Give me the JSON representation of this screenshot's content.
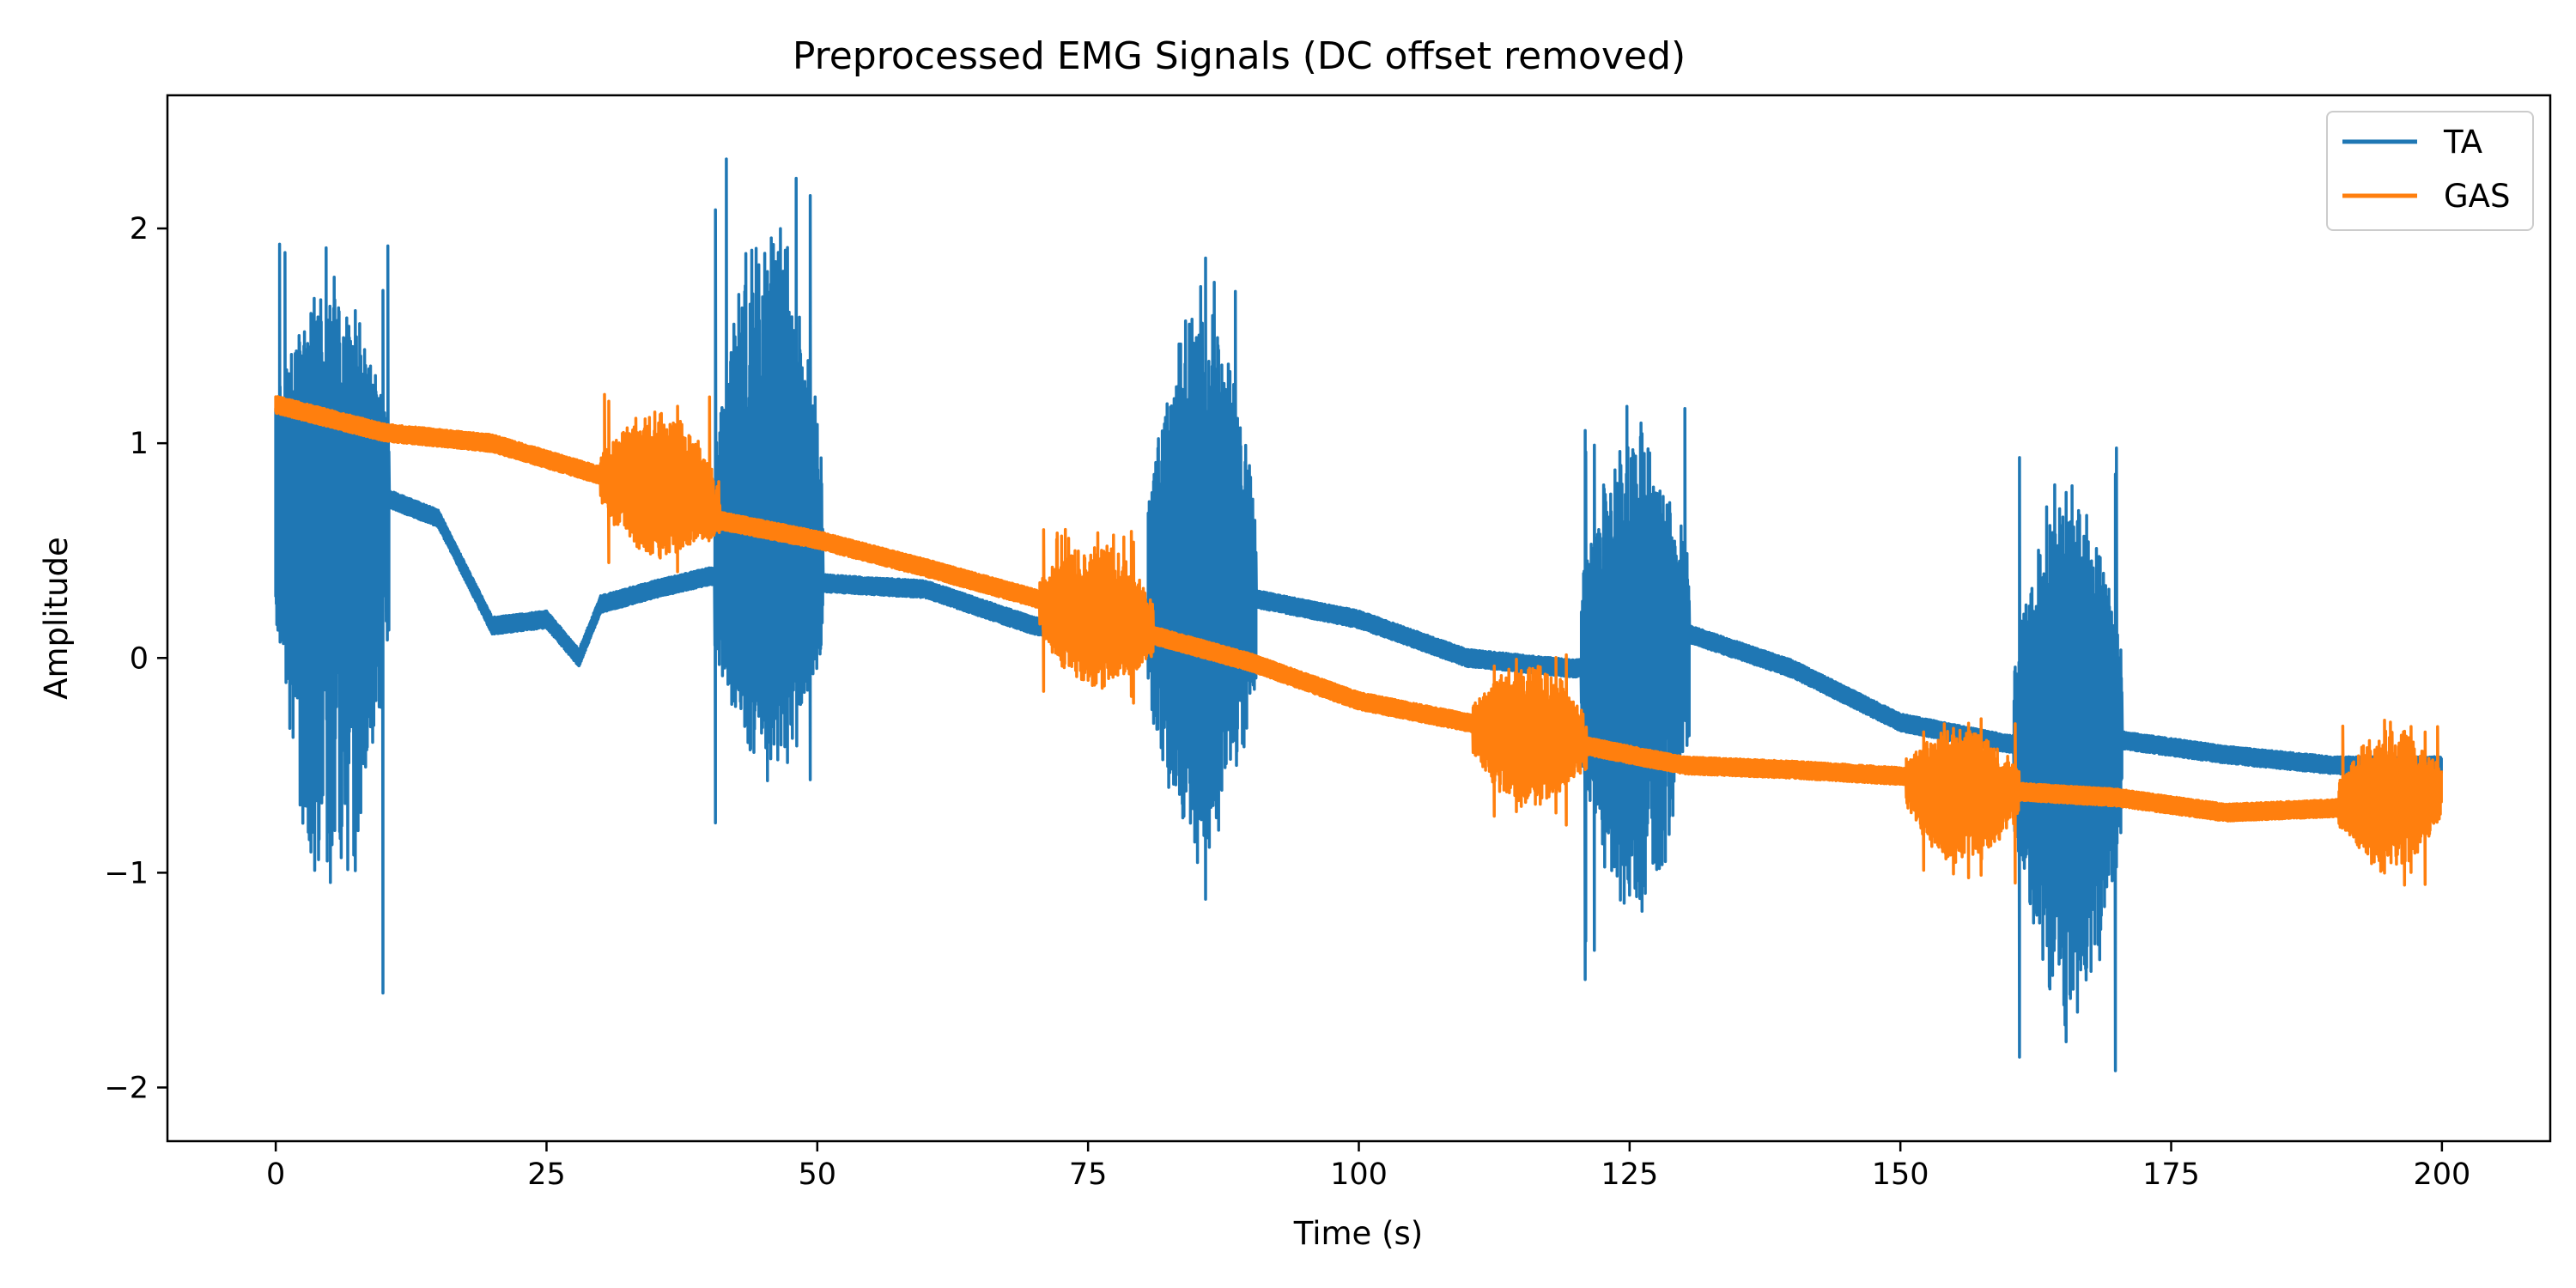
{
  "chart_data": {
    "type": "line",
    "title": "Preprocessed EMG Signals (DC offset removed)",
    "xlabel": "Time (s)",
    "ylabel": "Amplitude",
    "xlim": [
      -10,
      210
    ],
    "ylim": [
      -2.25,
      2.62
    ],
    "xticks": [
      0,
      25,
      50,
      75,
      100,
      125,
      150,
      175,
      200
    ],
    "yticks": [
      -2,
      -1,
      0,
      1,
      2
    ],
    "x_tick_labels": [
      "0",
      "25",
      "50",
      "75",
      "100",
      "125",
      "150",
      "175",
      "200"
    ],
    "y_tick_labels": [
      "−2",
      "−1",
      "0",
      "1",
      "2"
    ],
    "legend_position": "top-right",
    "grid": false,
    "series": [
      {
        "name": "TA",
        "color": "#1f77b4",
        "baseline_points": [
          [
            0,
            0.9
          ],
          [
            10,
            0.75
          ],
          [
            15,
            0.65
          ],
          [
            20,
            0.15
          ],
          [
            25,
            0.18
          ],
          [
            28,
            0.0
          ],
          [
            30,
            0.25
          ],
          [
            35,
            0.32
          ],
          [
            40,
            0.38
          ],
          [
            50,
            0.35
          ],
          [
            60,
            0.32
          ],
          [
            70,
            0.15
          ],
          [
            75,
            0.12
          ],
          [
            85,
            0.3
          ],
          [
            90,
            0.28
          ],
          [
            100,
            0.18
          ],
          [
            110,
            0.0
          ],
          [
            120,
            -0.05
          ],
          [
            130,
            0.12
          ],
          [
            140,
            -0.05
          ],
          [
            150,
            -0.3
          ],
          [
            160,
            -0.4
          ],
          [
            170,
            -0.38
          ],
          [
            180,
            -0.45
          ],
          [
            190,
            -0.5
          ],
          [
            200,
            -0.5
          ]
        ],
        "bursts": [
          {
            "start": 0,
            "end": 10.5,
            "max": 1.93,
            "min": -1.65
          },
          {
            "start": 40.5,
            "end": 50.5,
            "max": 2.4,
            "min": -0.8
          },
          {
            "start": 80.5,
            "end": 90.5,
            "max": 1.9,
            "min": -1.23
          },
          {
            "start": 120.5,
            "end": 130.5,
            "max": 1.23,
            "min": -1.55
          },
          {
            "start": 160.5,
            "end": 170.5,
            "max": 1.02,
            "min": -2.02
          }
        ]
      },
      {
        "name": "GAS",
        "color": "#ff7f0e",
        "baseline_points": [
          [
            0,
            1.18
          ],
          [
            10,
            1.05
          ],
          [
            20,
            1.0
          ],
          [
            30,
            0.85
          ],
          [
            40,
            0.65
          ],
          [
            50,
            0.55
          ],
          [
            60,
            0.42
          ],
          [
            70,
            0.28
          ],
          [
            80,
            0.12
          ],
          [
            90,
            -0.02
          ],
          [
            100,
            -0.2
          ],
          [
            110,
            -0.3
          ],
          [
            120,
            -0.4
          ],
          [
            130,
            -0.5
          ],
          [
            140,
            -0.52
          ],
          [
            150,
            -0.55
          ],
          [
            160,
            -0.62
          ],
          [
            170,
            -0.65
          ],
          [
            180,
            -0.72
          ],
          [
            190,
            -0.7
          ],
          [
            200,
            -0.62
          ]
        ],
        "bursts": [
          {
            "start": 30,
            "end": 41,
            "max": 1.23,
            "min": 0.4
          },
          {
            "start": 70.5,
            "end": 81,
            "max": 0.6,
            "min": -0.23
          },
          {
            "start": 110.5,
            "end": 121,
            "max": 0.03,
            "min": -0.78
          },
          {
            "start": 150.5,
            "end": 161,
            "max": -0.28,
            "min": -1.05
          },
          {
            "start": 190.5,
            "end": 200,
            "max": -0.28,
            "min": -1.07
          }
        ]
      }
    ]
  }
}
